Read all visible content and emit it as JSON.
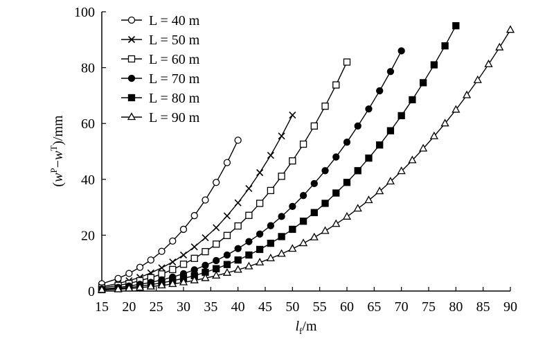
{
  "chart_data": {
    "type": "line",
    "xlabel": [
      "l",
      "f",
      "/m"
    ],
    "ylabel": [
      "(",
      "w",
      "P",
      "−",
      "w",
      "T",
      ")/mm"
    ],
    "xlim": [
      15,
      90
    ],
    "xticks": [
      15,
      20,
      25,
      30,
      35,
      40,
      45,
      50,
      55,
      60,
      65,
      70,
      75,
      80,
      85,
      90
    ],
    "ylim": [
      0,
      100
    ],
    "yticks": [
      0,
      20,
      40,
      60,
      80,
      100
    ],
    "legend": "upper left",
    "series": [
      {
        "name": "L = 40 m",
        "color": "#000000",
        "marker": "open-circle",
        "x": [
          15,
          18,
          20,
          22,
          24,
          26,
          28,
          30,
          32,
          34,
          36,
          38,
          40
        ],
        "values": [
          2.6,
          4.5,
          6.3,
          8.5,
          11.1,
          14.2,
          17.9,
          22.1,
          27.0,
          32.6,
          38.9,
          46.0,
          54.0
        ]
      },
      {
        "name": "L = 50 m",
        "color": "#000000",
        "marker": "cross",
        "x": [
          15,
          18,
          20,
          22,
          24,
          26,
          28,
          30,
          32,
          34,
          36,
          38,
          40,
          42,
          44,
          46,
          48,
          50
        ],
        "values": [
          1.5,
          2.7,
          3.7,
          4.9,
          6.5,
          8.3,
          10.4,
          12.9,
          15.8,
          19.1,
          22.7,
          26.9,
          31.6,
          36.7,
          42.4,
          48.6,
          55.5,
          63.0
        ]
      },
      {
        "name": "L = 60 m",
        "color": "#000000",
        "marker": "open-square",
        "x": [
          15,
          18,
          20,
          22,
          24,
          26,
          28,
          30,
          32,
          34,
          36,
          38,
          40,
          42,
          44,
          46,
          48,
          50,
          52,
          54,
          56,
          58,
          60
        ],
        "values": [
          1.1,
          2.0,
          2.7,
          3.7,
          4.8,
          6.1,
          7.7,
          9.6,
          11.7,
          14.1,
          16.8,
          19.9,
          23.3,
          27.1,
          31.4,
          36.0,
          41.1,
          46.6,
          52.6,
          59.1,
          66.2,
          73.8,
          82.0
        ]
      },
      {
        "name": "L = 70 m",
        "color": "#000000",
        "marker": "filled-circle",
        "x": [
          15,
          18,
          20,
          22,
          24,
          26,
          28,
          30,
          32,
          34,
          36,
          38,
          40,
          42,
          44,
          46,
          48,
          50,
          52,
          54,
          56,
          58,
          60,
          62,
          64,
          66,
          68,
          70
        ],
        "values": [
          0.7,
          1.3,
          1.8,
          2.4,
          3.1,
          4.0,
          5.0,
          6.2,
          7.6,
          9.2,
          10.9,
          12.9,
          15.2,
          17.7,
          20.4,
          23.4,
          26.7,
          30.3,
          34.2,
          38.5,
          43.1,
          48.0,
          53.3,
          59.1,
          65.2,
          71.7,
          78.6,
          86.0
        ]
      },
      {
        "name": "L = 80 m",
        "color": "#000000",
        "marker": "filled-square",
        "x": [
          15,
          18,
          20,
          22,
          24,
          26,
          28,
          30,
          32,
          34,
          36,
          38,
          40,
          42,
          44,
          46,
          48,
          50,
          52,
          54,
          56,
          58,
          60,
          62,
          64,
          66,
          68,
          70,
          72,
          74,
          76,
          78,
          80
        ],
        "values": [
          0.5,
          0.9,
          1.3,
          1.7,
          2.3,
          2.9,
          3.7,
          4.5,
          5.5,
          6.7,
          8.0,
          9.5,
          11.1,
          12.9,
          14.9,
          17.1,
          19.5,
          22.1,
          25.0,
          28.1,
          31.4,
          35.1,
          38.9,
          43.1,
          47.6,
          52.3,
          57.4,
          62.8,
          68.5,
          74.6,
          81.0,
          87.8,
          95.0
        ]
      },
      {
        "name": "L = 90 m",
        "color": "#000000",
        "marker": "open-triangle",
        "x": [
          15,
          18,
          20,
          22,
          24,
          26,
          28,
          30,
          32,
          34,
          36,
          38,
          40,
          42,
          44,
          46,
          48,
          50,
          52,
          54,
          56,
          58,
          60,
          62,
          64,
          66,
          68,
          70,
          72,
          74,
          76,
          78,
          80,
          82,
          84,
          86,
          88,
          90
        ],
        "values": [
          0.4,
          0.6,
          0.9,
          1.2,
          1.6,
          2.0,
          2.5,
          3.1,
          3.8,
          4.6,
          5.5,
          6.5,
          7.6,
          8.8,
          10.2,
          11.7,
          13.3,
          15.1,
          17.1,
          19.2,
          21.5,
          24.0,
          26.6,
          29.5,
          32.5,
          35.7,
          39.2,
          42.9,
          46.8,
          51.0,
          55.4,
          60.0,
          64.9,
          70.1,
          75.5,
          81.2,
          87.2,
          93.5
        ]
      }
    ]
  }
}
